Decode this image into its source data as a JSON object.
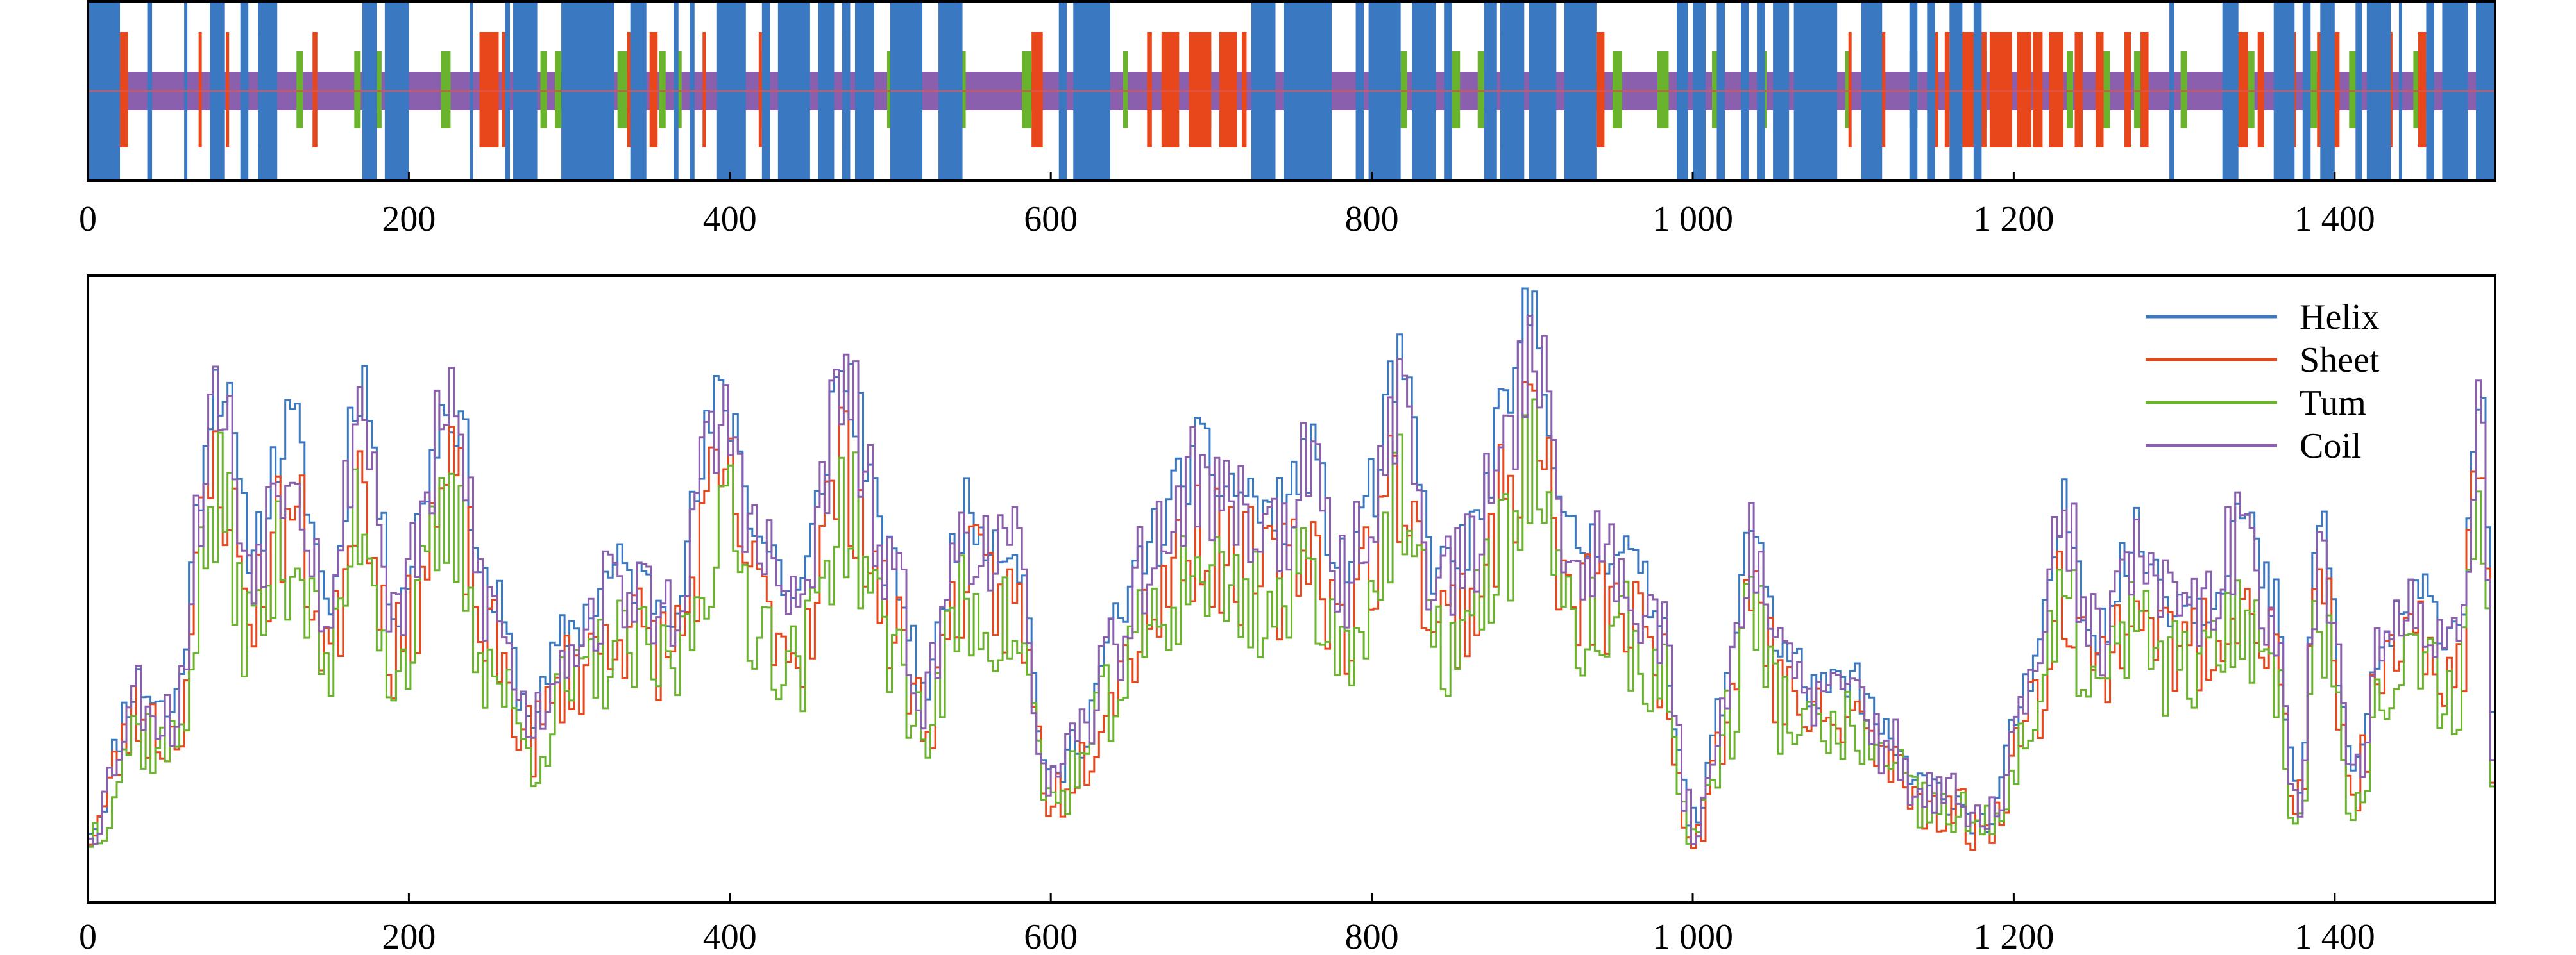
{
  "chart_data": [
    {
      "type": "track",
      "xlim": [
        0,
        1500
      ],
      "xticks": [
        {
          "value": 0,
          "label": "0"
        },
        {
          "value": 200,
          "label": "200"
        },
        {
          "value": 400,
          "label": "400"
        },
        {
          "value": 600,
          "label": "600"
        },
        {
          "value": 800,
          "label": "800"
        },
        {
          "value": 1000,
          "label": "1 000"
        },
        {
          "value": 1200,
          "label": "1 200"
        },
        {
          "value": 1400,
          "label": "1 400"
        }
      ],
      "colors": {
        "helix": "#3a78c2",
        "sheet": "#e8461b",
        "turn": "#6ab42d",
        "coil": "#8a5fae",
        "centerline": "#d9534f"
      },
      "coil_span": [
        20,
        1500
      ],
      "helix_segments": [
        [
          0,
          20
        ],
        [
          37,
          40
        ],
        [
          60,
          62
        ],
        [
          76,
          85
        ],
        [
          95,
          100
        ],
        [
          106,
          118
        ],
        [
          171,
          180
        ],
        [
          185,
          200
        ],
        [
          238,
          240
        ],
        [
          260,
          263
        ],
        [
          265,
          280
        ],
        [
          295,
          328
        ],
        [
          338,
          348
        ],
        [
          365,
          368
        ],
        [
          375,
          378
        ],
        [
          392,
          410
        ],
        [
          420,
          425
        ],
        [
          430,
          450
        ],
        [
          455,
          465
        ],
        [
          470,
          475
        ],
        [
          478,
          490
        ],
        [
          500,
          520
        ],
        [
          530,
          545
        ],
        [
          605,
          610
        ],
        [
          614,
          637
        ],
        [
          725,
          740
        ],
        [
          745,
          775
        ],
        [
          790,
          795
        ],
        [
          798,
          818
        ],
        [
          825,
          840
        ],
        [
          845,
          850
        ],
        [
          870,
          878
        ],
        [
          880,
          895
        ],
        [
          898,
          915
        ],
        [
          920,
          940
        ],
        [
          990,
          997
        ],
        [
          1000,
          1008
        ],
        [
          1015,
          1020
        ],
        [
          1030,
          1035
        ],
        [
          1040,
          1045
        ],
        [
          1050,
          1060
        ],
        [
          1063,
          1090
        ],
        [
          1105,
          1118
        ],
        [
          1135,
          1140
        ],
        [
          1146,
          1151
        ],
        [
          1160,
          1168
        ],
        [
          1175,
          1180
        ],
        [
          1297,
          1300
        ],
        [
          1330,
          1340
        ],
        [
          1362,
          1375
        ],
        [
          1380,
          1385
        ],
        [
          1391,
          1400
        ],
        [
          1413,
          1417
        ],
        [
          1420,
          1435
        ],
        [
          1440,
          1442
        ],
        [
          1457,
          1462
        ],
        [
          1467,
          1483
        ],
        [
          1488,
          1500
        ]
      ],
      "sheet_segments": [
        [
          20,
          25
        ],
        [
          69,
          71
        ],
        [
          86,
          88
        ],
        [
          106,
          108
        ],
        [
          140,
          143
        ],
        [
          190,
          194
        ],
        [
          238,
          240
        ],
        [
          244,
          256
        ],
        [
          258,
          262
        ],
        [
          318,
          320
        ],
        [
          336,
          340
        ],
        [
          350,
          355
        ],
        [
          383,
          385
        ],
        [
          402,
          406
        ],
        [
          418,
          420
        ],
        [
          470,
          474
        ],
        [
          508,
          512
        ],
        [
          533,
          537
        ],
        [
          588,
          595
        ],
        [
          660,
          663
        ],
        [
          669,
          680
        ],
        [
          686,
          700
        ],
        [
          705,
          716
        ],
        [
          719,
          722
        ],
        [
          880,
          885
        ],
        [
          940,
          945
        ],
        [
          1082,
          1086
        ],
        [
          1097,
          1099
        ],
        [
          1110,
          1120
        ],
        [
          1149,
          1153
        ],
        [
          1157,
          1160
        ],
        [
          1163,
          1177
        ],
        [
          1178,
          1183
        ],
        [
          1185,
          1199
        ],
        [
          1202,
          1211
        ],
        [
          1212,
          1218
        ],
        [
          1222,
          1231
        ],
        [
          1238,
          1243
        ],
        [
          1251,
          1256
        ],
        [
          1269,
          1273
        ],
        [
          1279,
          1284
        ],
        [
          1333,
          1346
        ],
        [
          1352,
          1356
        ],
        [
          1372,
          1376
        ],
        [
          1389,
          1394
        ],
        [
          1398,
          1403
        ],
        [
          1430,
          1436
        ],
        [
          1452,
          1457
        ]
      ],
      "turn_segments": [
        [
          111,
          115
        ],
        [
          130,
          134
        ],
        [
          166,
          170
        ],
        [
          180,
          183
        ],
        [
          220,
          226
        ],
        [
          282,
          286
        ],
        [
          291,
          295
        ],
        [
          330,
          336
        ],
        [
          340,
          343
        ],
        [
          356,
          360
        ],
        [
          365,
          370
        ],
        [
          420,
          424
        ],
        [
          498,
          504
        ],
        [
          540,
          547
        ],
        [
          582,
          588
        ],
        [
          630,
          635
        ],
        [
          645,
          648
        ],
        [
          697,
          700
        ],
        [
          818,
          822
        ],
        [
          829,
          835
        ],
        [
          848,
          855
        ],
        [
          866,
          870
        ],
        [
          950,
          956
        ],
        [
          978,
          985
        ],
        [
          1012,
          1016
        ],
        [
          1042,
          1046
        ],
        [
          1066,
          1070
        ],
        [
          1095,
          1098
        ],
        [
          1135,
          1140
        ],
        [
          1180,
          1183
        ],
        [
          1233,
          1237
        ],
        [
          1255,
          1260
        ],
        [
          1275,
          1280
        ],
        [
          1304,
          1308
        ],
        [
          1345,
          1350
        ],
        [
          1383,
          1389
        ],
        [
          1409,
          1414
        ],
        [
          1449,
          1453
        ]
      ]
    },
    {
      "type": "line",
      "xlim": [
        0,
        1500
      ],
      "ylim": [
        0,
        1
      ],
      "xticks": [
        {
          "value": 0,
          "label": "0"
        },
        {
          "value": 200,
          "label": "200"
        },
        {
          "value": 400,
          "label": "400"
        },
        {
          "value": 600,
          "label": "600"
        },
        {
          "value": 800,
          "label": "800"
        },
        {
          "value": 1000,
          "label": "1 000"
        },
        {
          "value": 1200,
          "label": "1 200"
        },
        {
          "value": 1400,
          "label": "1 400"
        }
      ],
      "legend_position": "top-right",
      "envelope_peaks": [
        [
          0,
          0.05
        ],
        [
          30,
          0.3
        ],
        [
          50,
          0.25
        ],
        [
          80,
          0.85
        ],
        [
          100,
          0.55
        ],
        [
          125,
          0.75
        ],
        [
          150,
          0.45
        ],
        [
          168,
          0.85
        ],
        [
          190,
          0.45
        ],
        [
          225,
          0.8
        ],
        [
          250,
          0.45
        ],
        [
          275,
          0.25
        ],
        [
          300,
          0.4
        ],
        [
          330,
          0.5
        ],
        [
          360,
          0.45
        ],
        [
          395,
          0.8
        ],
        [
          420,
          0.55
        ],
        [
          440,
          0.45
        ],
        [
          470,
          0.85
        ],
        [
          500,
          0.5
        ],
        [
          520,
          0.3
        ],
        [
          545,
          0.6
        ],
        [
          575,
          0.55
        ],
        [
          600,
          0.12
        ],
        [
          615,
          0.2
        ],
        [
          640,
          0.4
        ],
        [
          660,
          0.55
        ],
        [
          690,
          0.7
        ],
        [
          710,
          0.65
        ],
        [
          740,
          0.6
        ],
        [
          760,
          0.7
        ],
        [
          780,
          0.5
        ],
        [
          800,
          0.65
        ],
        [
          815,
          0.85
        ],
        [
          840,
          0.5
        ],
        [
          860,
          0.55
        ],
        [
          880,
          0.75
        ],
        [
          900,
          0.98
        ],
        [
          920,
          0.55
        ],
        [
          950,
          0.55
        ],
        [
          975,
          0.45
        ],
        [
          1000,
          0.05
        ],
        [
          1020,
          0.3
        ],
        [
          1035,
          0.6
        ],
        [
          1055,
          0.35
        ],
        [
          1080,
          0.28
        ],
        [
          1100,
          0.3
        ],
        [
          1120,
          0.2
        ],
        [
          1140,
          0.12
        ],
        [
          1160,
          0.1
        ],
        [
          1180,
          0.05
        ],
        [
          1210,
          0.3
        ],
        [
          1230,
          0.6
        ],
        [
          1250,
          0.4
        ],
        [
          1275,
          0.55
        ],
        [
          1300,
          0.45
        ],
        [
          1320,
          0.45
        ],
        [
          1340,
          0.6
        ],
        [
          1360,
          0.45
        ],
        [
          1375,
          0.1
        ],
        [
          1390,
          0.58
        ],
        [
          1410,
          0.15
        ],
        [
          1430,
          0.38
        ],
        [
          1450,
          0.45
        ],
        [
          1475,
          0.4
        ],
        [
          1490,
          0.85
        ],
        [
          1500,
          0.05
        ]
      ],
      "series": [
        {
          "name": "Helix",
          "color": "#3a78c2",
          "scale": 1.0,
          "jitter": 0.06,
          "seed": 11
        },
        {
          "name": "Sheet",
          "color": "#e8461b",
          "scale": 0.8,
          "jitter": 0.1,
          "seed": 23
        },
        {
          "name": "Tum",
          "color": "#6ab42d",
          "scale": 0.72,
          "jitter": 0.1,
          "seed": 37
        },
        {
          "name": "Coil",
          "color": "#8a5fae",
          "scale": 0.95,
          "jitter": 0.09,
          "seed": 53
        }
      ]
    }
  ]
}
